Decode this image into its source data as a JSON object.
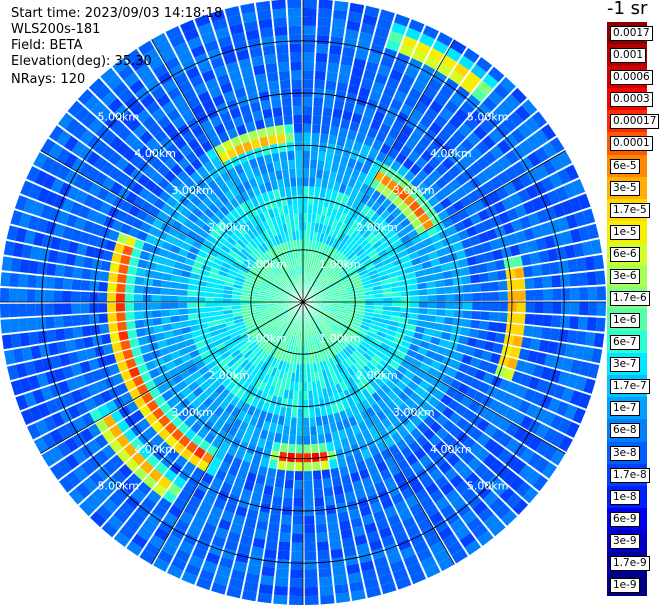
{
  "header": {
    "start_time": "Start time: 2023/09/03 14:18:18",
    "device": "WLS200s-181",
    "field": "Field: BETA",
    "elevation": "Elevation(deg): 35.30",
    "nrays": "NRays: 120"
  },
  "chart_data": {
    "type": "heatmap",
    "projection": "polar",
    "n_rays": 120,
    "range_rings_km": [
      1,
      2,
      3,
      4,
      5
    ],
    "range_ring_labels": [
      "1.00km",
      "2.00km",
      "3.00km",
      "4.00km",
      "5.00km"
    ],
    "max_range_km": 5.8,
    "spokes_every_deg": 30,
    "colorbar": {
      "unit_label": "-1 sr",
      "ticks": [
        "0.0017",
        "0.001",
        "0.0006",
        "0.0003",
        "0.00017",
        "0.0001",
        "6e-5",
        "3e-5",
        "1.7e-5",
        "1e-5",
        "6e-6",
        "3e-6",
        "1.7e-6",
        "1e-6",
        "6e-7",
        "3e-7",
        "1.7e-7",
        "1e-7",
        "6e-8",
        "3e-8",
        "1.7e-8",
        "1e-8",
        "6e-9",
        "3e-9",
        "1.7e-9",
        "1e-9"
      ],
      "colors": [
        "#8b0000",
        "#b00000",
        "#d40000",
        "#ff0000",
        "#ff2a00",
        "#ff5a00",
        "#ff8a00",
        "#ffb000",
        "#ffd800",
        "#f4f000",
        "#d2ff2a",
        "#a8ff55",
        "#80ff80",
        "#55ffaa",
        "#2affd4",
        "#00e8ff",
        "#00c4ff",
        "#00a0ff",
        "#0080ff",
        "#0060ff",
        "#0040ff",
        "#0020ff",
        "#0000f0",
        "#0000c8",
        "#0000a0",
        "#000080"
      ]
    },
    "enhanced_arcs": [
      {
        "range_km": 3.55,
        "az_from": 210,
        "az_to": 290,
        "level": 0.92
      },
      {
        "range_km": 4.1,
        "az_from": 80,
        "az_to": 110,
        "level": 0.8
      },
      {
        "range_km": 2.8,
        "az_from": 30,
        "az_to": 60,
        "level": 0.72
      },
      {
        "range_km": 3.0,
        "az_from": 170,
        "az_to": 190,
        "level": 0.85
      },
      {
        "range_km": 4.4,
        "az_from": 215,
        "az_to": 240,
        "level": 0.7
      },
      {
        "range_km": 5.3,
        "az_from": 20,
        "az_to": 40,
        "level": 0.65
      },
      {
        "range_km": 3.2,
        "az_from": 330,
        "az_to": 355,
        "level": 0.65
      }
    ]
  }
}
